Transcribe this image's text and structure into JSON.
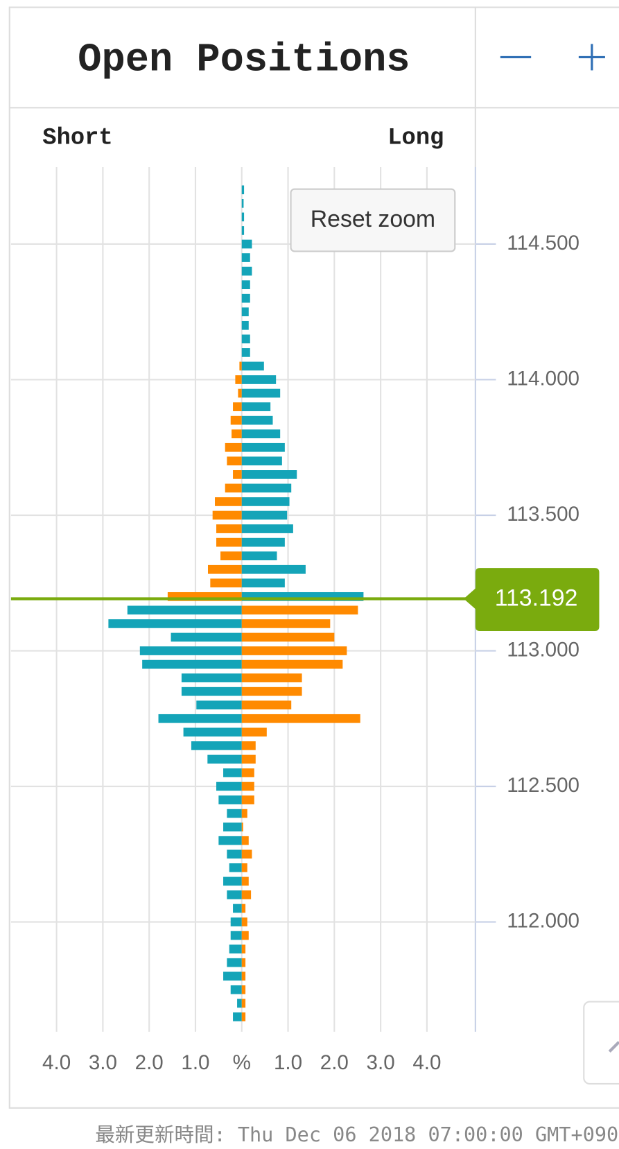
{
  "chart_data": {
    "type": "butterfly-bar",
    "title": "Open Positions",
    "left_label": "Short",
    "right_label": "Long",
    "button": "Reset zoom",
    "footer": "最新更新時間: Thu Dec 06 2018 07:00:00 GMT+090",
    "current_price": 113.192,
    "x_center_label": "%",
    "xlim": [
      0,
      5
    ],
    "xticks": [
      {
        "value": 1,
        "label": "1.0"
      },
      {
        "value": 2,
        "label": "2.0"
      },
      {
        "value": 3,
        "label": "3.0"
      },
      {
        "value": 4,
        "label": "4.0"
      }
    ],
    "ylim": [
      111.595,
      114.784
    ],
    "yticks": [
      {
        "value": 112,
        "label": "112.000"
      },
      {
        "value": 112.5,
        "label": "112.500"
      },
      {
        "value": 113,
        "label": "113.000"
      },
      {
        "value": 113.5,
        "label": "113.500"
      },
      {
        "value": 114,
        "label": "114.000"
      },
      {
        "value": 114.5,
        "label": "114.500"
      }
    ],
    "grid": true,
    "price_line_color": "#7aab0e",
    "y": [
      114.7,
      114.65,
      114.6,
      114.55,
      114.5,
      114.45,
      114.4,
      114.35,
      114.3,
      114.25,
      114.2,
      114.15,
      114.1,
      114.05,
      114.0,
      113.95,
      113.9,
      113.85,
      113.8,
      113.75,
      113.7,
      113.65,
      113.6,
      113.55,
      113.5,
      113.45,
      113.4,
      113.35,
      113.3,
      113.25,
      113.2,
      113.15,
      113.1,
      113.05,
      113.0,
      112.95,
      112.9,
      112.85,
      112.8,
      112.75,
      112.7,
      112.65,
      112.6,
      112.55,
      112.5,
      112.45,
      112.4,
      112.35,
      112.3,
      112.25,
      112.2,
      112.15,
      112.1,
      112.05,
      112.0,
      111.95,
      111.9,
      111.85,
      111.8,
      111.75,
      111.7,
      111.65
    ],
    "series": [
      {
        "name": "Short",
        "side": "left",
        "color_above": "#ff8a00",
        "color_below": "#14a4b8",
        "values": [
          0,
          0,
          0,
          0,
          0,
          0,
          0,
          0,
          0,
          0,
          0,
          0,
          0,
          0.05,
          0.14,
          0.08,
          0.19,
          0.24,
          0.22,
          0.36,
          0.32,
          0.19,
          0.36,
          0.58,
          0.63,
          0.55,
          0.55,
          0.46,
          0.73,
          0.68,
          1.6,
          2.47,
          2.88,
          1.53,
          2.2,
          2.15,
          1.3,
          1.3,
          0.98,
          1.8,
          1.26,
          1.09,
          0.74,
          0.4,
          0.55,
          0.5,
          0.32,
          0.4,
          0.5,
          0.32,
          0.27,
          0.4,
          0.32,
          0.19,
          0.24,
          0.24,
          0.27,
          0.32,
          0.4,
          0.24,
          0.1,
          0.19
        ]
      },
      {
        "name": "Long",
        "side": "right",
        "color_above": "#14a4b8",
        "color_below": "#ff8a00",
        "values": [
          0.05,
          0.04,
          0.05,
          0.05,
          0.22,
          0.18,
          0.22,
          0.18,
          0.18,
          0.15,
          0.15,
          0.18,
          0.18,
          0.48,
          0.74,
          0.83,
          0.62,
          0.67,
          0.83,
          0.93,
          0.87,
          1.19,
          1.07,
          1.03,
          0.98,
          1.11,
          0.93,
          0.76,
          1.38,
          0.93,
          2.63,
          2.51,
          1.91,
          2.0,
          2.27,
          2.18,
          1.3,
          1.3,
          1.07,
          2.56,
          0.54,
          0.3,
          0.3,
          0.27,
          0.27,
          0.27,
          0.12,
          0.03,
          0.15,
          0.22,
          0.12,
          0.15,
          0.2,
          0.08,
          0.12,
          0.15,
          0.08,
          0.08,
          0.08,
          0.08,
          0.08,
          0.08
        ]
      }
    ]
  }
}
